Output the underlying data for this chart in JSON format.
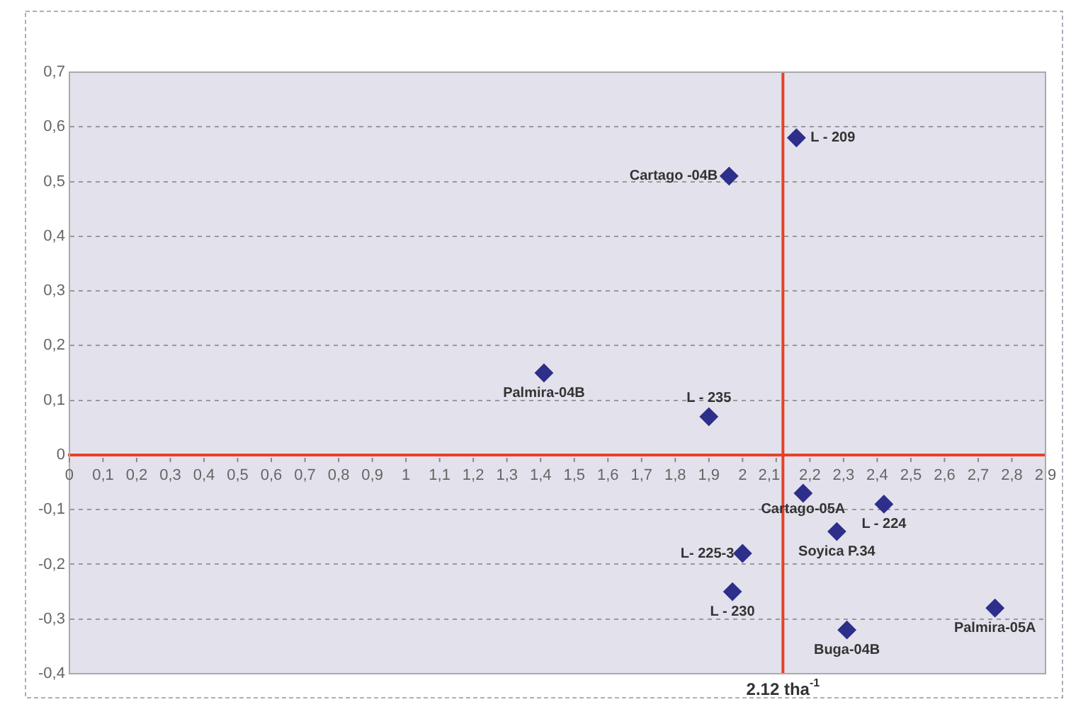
{
  "chart_data": {
    "type": "scatter",
    "marker": "diamond",
    "legend": false,
    "grid": "y",
    "xlim": [
      0,
      2.9
    ],
    "ylim": [
      -0.4,
      0.7
    ],
    "xticks": [
      0,
      {
        "value": 0.1,
        "label": "0,1"
      },
      {
        "value": 0.2,
        "label": "0,2"
      },
      {
        "value": 0.3,
        "label": "0,3"
      },
      {
        "value": 0.4,
        "label": "0,4"
      },
      {
        "value": 0.5,
        "label": "0,5"
      },
      {
        "value": 0.6,
        "label": "0,6"
      },
      {
        "value": 0.7,
        "label": "0,7"
      },
      {
        "value": 0.8,
        "label": "0,8"
      },
      {
        "value": 0.9,
        "label": "0,9"
      },
      1,
      {
        "value": 1.1,
        "label": "1,1"
      },
      {
        "value": 1.2,
        "label": "1,2"
      },
      {
        "value": 1.3,
        "label": "1,3"
      },
      {
        "value": 1.4,
        "label": "1,4"
      },
      {
        "value": 1.5,
        "label": "1,5"
      },
      {
        "value": 1.6,
        "label": "1,6"
      },
      {
        "value": 1.7,
        "label": "1,7"
      },
      {
        "value": 1.8,
        "label": "1,8"
      },
      {
        "value": 1.9,
        "label": "1,9"
      },
      2,
      {
        "value": 2.1,
        "label": "2,1"
      },
      {
        "value": 2.2,
        "label": "2,2"
      },
      {
        "value": 2.3,
        "label": "2,3"
      },
      {
        "value": 2.4,
        "label": "2,4"
      },
      {
        "value": 2.5,
        "label": "2,5"
      },
      {
        "value": 2.6,
        "label": "2,6"
      },
      {
        "value": 2.7,
        "label": "2,7"
      },
      {
        "value": 2.8,
        "label": "2,8"
      },
      {
        "value": 2.9,
        "label": "2,9"
      }
    ],
    "yticks": [
      {
        "value": -0.4,
        "label": "-0,4"
      },
      {
        "value": -0.3,
        "label": "-0,3"
      },
      {
        "value": -0.2,
        "label": "-0,2"
      },
      {
        "value": -0.1,
        "label": "-0,1"
      },
      0,
      {
        "value": 0.1,
        "label": "0,1"
      },
      {
        "value": 0.2,
        "label": "0,2"
      },
      {
        "value": 0.3,
        "label": "0,3"
      },
      {
        "value": 0.4,
        "label": "0,4"
      },
      {
        "value": 0.5,
        "label": "0,5"
      },
      {
        "value": 0.6,
        "label": "0,6"
      },
      {
        "value": 0.7,
        "label": "0,7"
      }
    ],
    "ref_lines": [
      {
        "axis": "x",
        "value": 2.12,
        "label": "2.12 tha$^{-1}$",
        "color": "#e8402a"
      }
    ],
    "series": [
      {
        "name": "L - 209",
        "color": "#2e2f8a",
        "x": [
          2.16
        ],
        "values": [
          0.58
        ]
      },
      {
        "name": "Cartago -04B",
        "color": "#2e2f8a",
        "x": [
          1.96
        ],
        "values": [
          0.51
        ]
      },
      {
        "name": "Palmira-04B",
        "color": "#2e2f8a",
        "x": [
          1.41
        ],
        "values": [
          0.15
        ]
      },
      {
        "name": "L - 235",
        "color": "#2e2f8a",
        "x": [
          1.9
        ],
        "values": [
          0.07
        ]
      },
      {
        "name": "Cartago-05A",
        "color": "#2e2f8a",
        "x": [
          2.18
        ],
        "values": [
          -0.07
        ]
      },
      {
        "name": "L - 224",
        "color": "#2e2f8a",
        "x": [
          2.42
        ],
        "values": [
          -0.09
        ]
      },
      {
        "name": "Soyica P.34",
        "color": "#2e2f8a",
        "x": [
          2.28
        ],
        "values": [
          -0.14
        ]
      },
      {
        "name": "L- 225-3",
        "color": "#2e2f8a",
        "x": [
          2.0
        ],
        "values": [
          -0.18
        ]
      },
      {
        "name": "L - 230",
        "color": "#2e2f8a",
        "x": [
          1.97
        ],
        "values": [
          -0.25
        ]
      },
      {
        "name": "Buga-04B",
        "color": "#2e2f8a",
        "x": [
          2.31
        ],
        "values": [
          -0.32
        ]
      },
      {
        "name": "Palmira-05A",
        "color": "#2e2f8a",
        "x": [
          2.75
        ],
        "values": [
          -0.28
        ]
      }
    ]
  }
}
